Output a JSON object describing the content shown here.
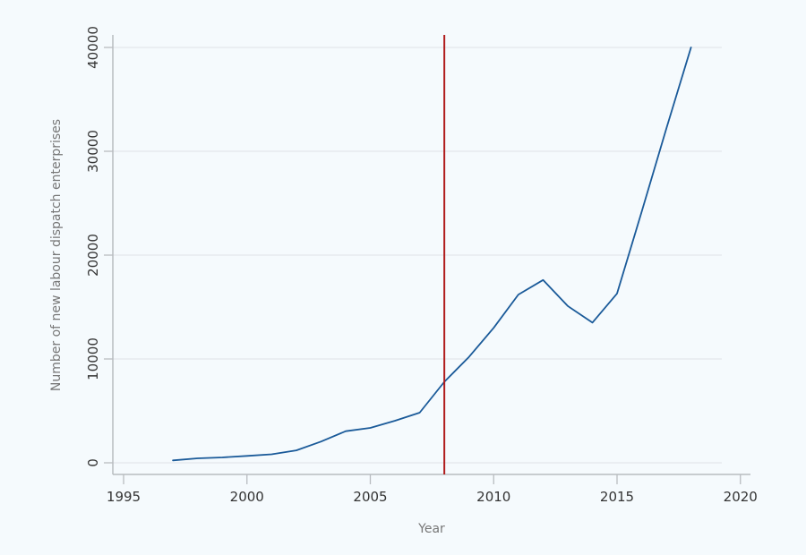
{
  "chart_data": {
    "type": "line",
    "title": "",
    "xlabel": "Year",
    "ylabel": "Number of new labour dispatch enterprises",
    "xlim": [
      1995,
      2020
    ],
    "ylim": [
      0,
      40000
    ],
    "x_ticks": [
      1995,
      2000,
      2005,
      2010,
      2015,
      2020
    ],
    "y_ticks": [
      0,
      10000,
      20000,
      30000,
      40000
    ],
    "grid": "horizontal",
    "legend": "none",
    "x": [
      1997,
      1998,
      1999,
      2000,
      2001,
      2002,
      2003,
      2004,
      2005,
      2006,
      2007,
      2008,
      2009,
      2010,
      2011,
      2012,
      2013,
      2014,
      2015,
      2016,
      2017,
      2018
    ],
    "series": [
      {
        "name": "New labour dispatch enterprises",
        "color": "#1a5a99",
        "values": [
          230,
          430,
          520,
          660,
          820,
          1200,
          2040,
          3040,
          3360,
          4050,
          4830,
          7800,
          10200,
          13000,
          16200,
          17600,
          15100,
          13500,
          16300,
          24200,
          32200,
          40000
        ]
      }
    ],
    "annotations": [
      {
        "type": "vertical-line",
        "x": 2008,
        "color": "#b01c1c"
      }
    ]
  },
  "colors": {
    "background": "#f5fafd",
    "axis": "#b8bcc0",
    "grid": "#e0e3e6",
    "line": "#1a5a99",
    "marker_line": "#b01c1c"
  }
}
